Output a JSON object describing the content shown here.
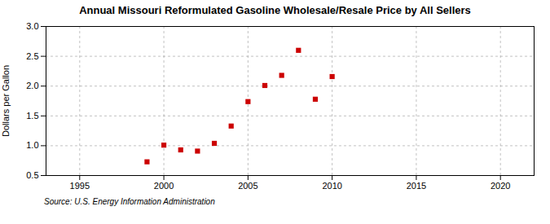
{
  "chart_data": {
    "type": "scatter",
    "title": "Annual Missouri Reformulated Gasoline Wholesale/Resale Price by All Sellers",
    "ylabel": "Dollars per Gallon",
    "source": "Source: U.S. Energy Information Administration",
    "x": [
      1999,
      2000,
      2001,
      2002,
      2003,
      2004,
      2005,
      2006,
      2007,
      2008,
      2009,
      2010
    ],
    "values": [
      0.73,
      1.01,
      0.93,
      0.91,
      1.04,
      1.33,
      1.74,
      2.01,
      2.18,
      2.6,
      1.78,
      2.16
    ],
    "color": "#cc0000",
    "marker": "square",
    "xlim": [
      1993,
      2022
    ],
    "xticks": [
      1995,
      2000,
      2005,
      2010,
      2015,
      2020
    ],
    "ylim": [
      0.5,
      3.0
    ],
    "yticks": [
      0.5,
      {
        "value": 1.0,
        "label": "1.0"
      },
      1.5,
      {
        "value": 2.0,
        "label": "2.0"
      },
      2.5,
      {
        "value": 3.0,
        "label": "3.0"
      }
    ],
    "grid": true
  }
}
